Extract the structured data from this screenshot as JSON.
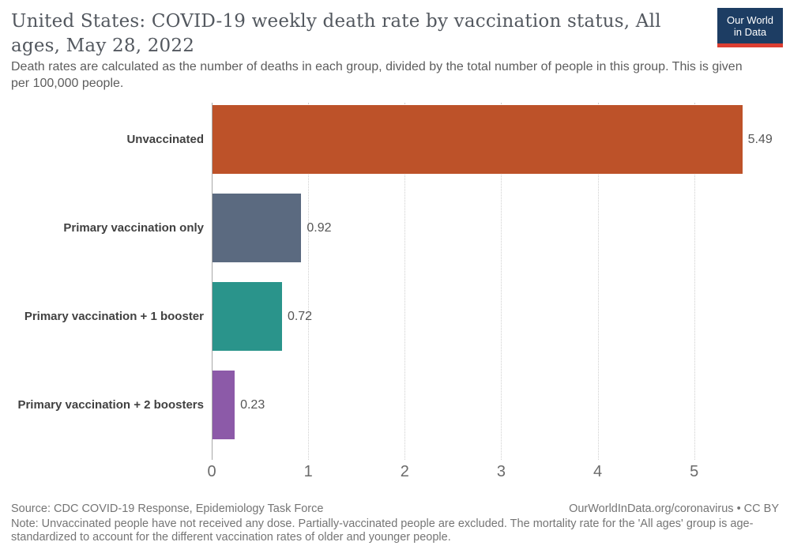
{
  "header": {
    "title": "United States: COVID-19 weekly death rate by vaccination status, All ages, May 28, 2022",
    "subtitle": "Death rates are calculated as the number of deaths in each group, divided by the total number of people in this group. This is given per 100,000 people."
  },
  "logo": {
    "line1": "Our World",
    "line2": "in Data",
    "bg_color": "#1d3d63",
    "accent_color": "#dc3e32"
  },
  "chart_data": {
    "type": "bar",
    "orientation": "horizontal",
    "categories": [
      "Unvaccinated",
      "Primary vaccination only",
      "Primary vaccination + 1 booster",
      "Primary vaccination + 2 boosters"
    ],
    "values": [
      5.49,
      0.92,
      0.72,
      0.23
    ],
    "value_labels": [
      "5.49",
      "0.92",
      "0.72",
      "0.23"
    ],
    "bar_colors": [
      "#bd5229",
      "#5b6a80",
      "#2a948b",
      "#8c5aa8"
    ],
    "x_ticks": [
      0,
      1,
      2,
      3,
      4,
      5
    ],
    "xlim": [
      0,
      5.87
    ],
    "xlabel": "",
    "ylabel": "",
    "grid": "vertical-dotted",
    "legend": "none",
    "unit": "deaths per 100,000 people"
  },
  "footer": {
    "source": "Source: CDC COVID-19 Response, Epidemiology Task Force",
    "attribution": "OurWorldInData.org/coronavirus • CC BY",
    "note": "Note: Unvaccinated people have not received any dose. Partially-vaccinated people are excluded. The mortality rate for the 'All ages' group is age-standardized to account for the different vaccination rates of older and younger people."
  }
}
